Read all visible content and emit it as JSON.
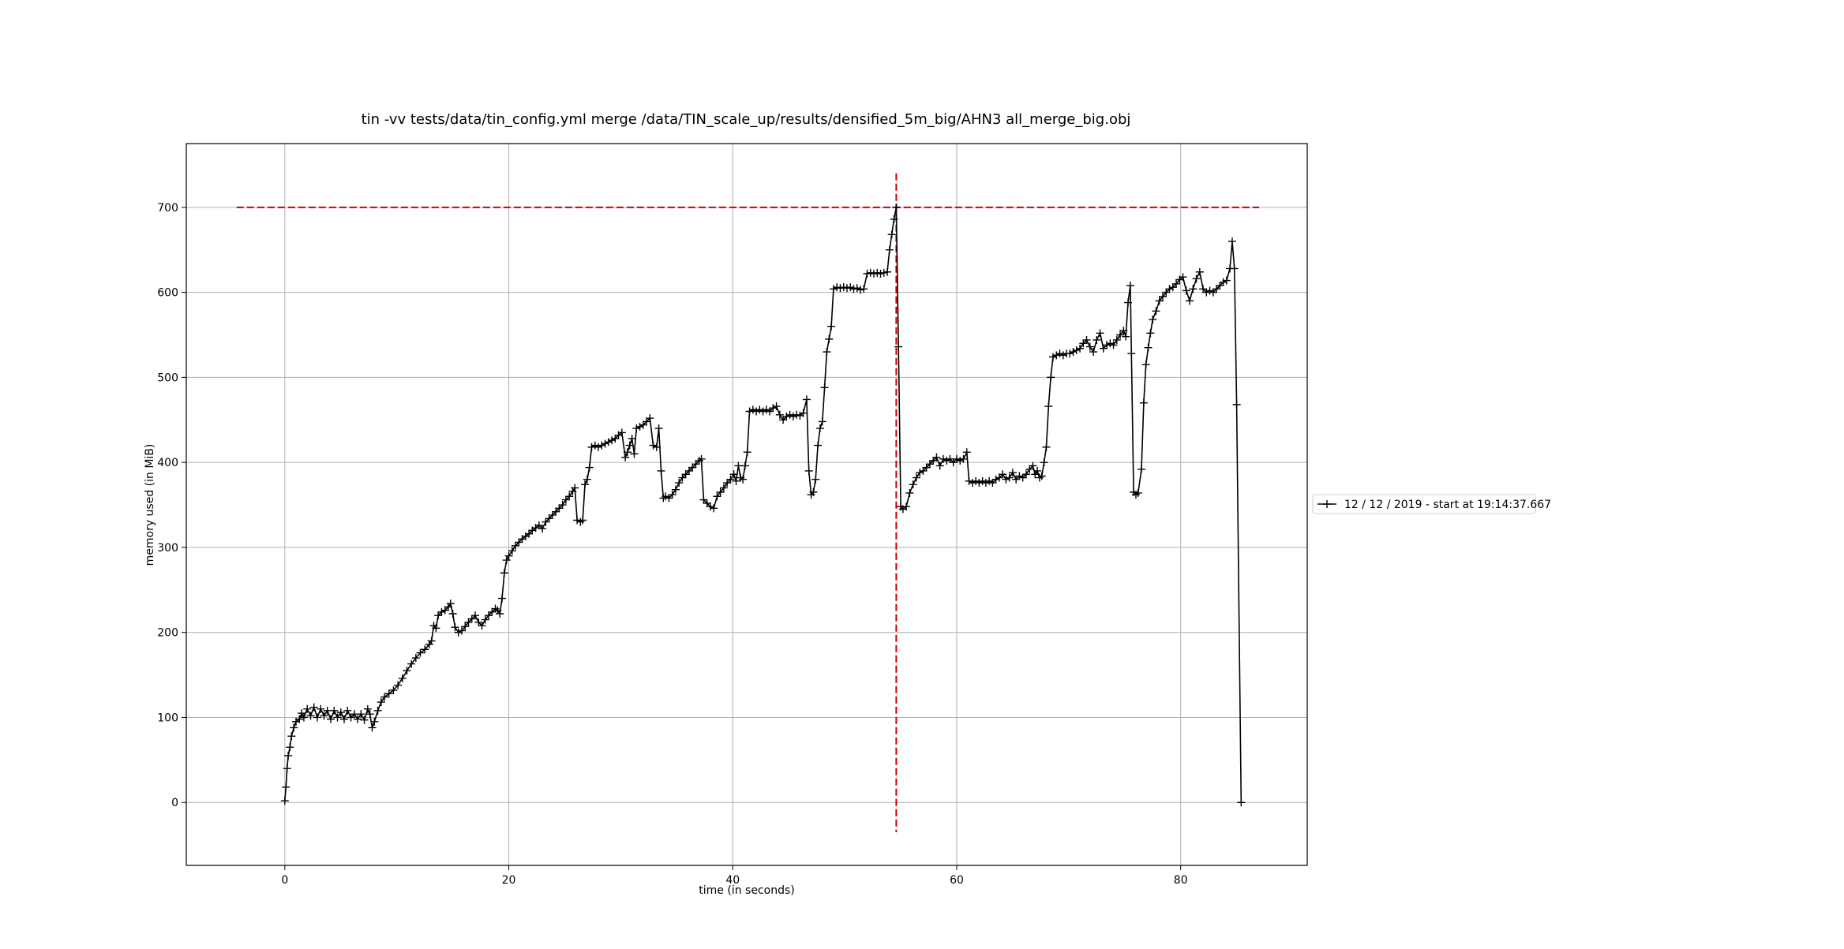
{
  "chart_data": {
    "type": "line",
    "title": "tin -vv tests/data/tin_config.yml merge /data/TIN_scale_up/results/densified_5m_big/AHN3 all_merge_big.obj",
    "xlabel": "time (in seconds)",
    "ylabel": "memory used (in MiB)",
    "xlim": [
      -8.8,
      91.3
    ],
    "ylim": [
      -74,
      775
    ],
    "xticks": [
      0,
      20,
      40,
      60,
      80
    ],
    "yticks": [
      0,
      100,
      200,
      300,
      400,
      500,
      600,
      700
    ],
    "grid": true,
    "legend_position": "right, outside",
    "series": [
      {
        "name": "12 / 12 / 2019 - start at 19:14:37.667",
        "color": "#000000",
        "marker": "+",
        "points": [
          [
            0.0,
            2
          ],
          [
            0.1,
            18
          ],
          [
            0.2,
            40
          ],
          [
            0.3,
            55
          ],
          [
            0.45,
            65
          ],
          [
            0.6,
            78
          ],
          [
            0.8,
            88
          ],
          [
            1.0,
            95
          ],
          [
            1.3,
            98
          ],
          [
            1.5,
            105
          ],
          [
            1.7,
            100
          ],
          [
            2.0,
            110
          ],
          [
            2.3,
            102
          ],
          [
            2.6,
            112
          ],
          [
            2.9,
            100
          ],
          [
            3.2,
            110
          ],
          [
            3.5,
            102
          ],
          [
            3.8,
            108
          ],
          [
            4.1,
            98
          ],
          [
            4.4,
            108
          ],
          [
            4.7,
            100
          ],
          [
            5.0,
            106
          ],
          [
            5.3,
            98
          ],
          [
            5.6,
            108
          ],
          [
            5.9,
            100
          ],
          [
            6.2,
            104
          ],
          [
            6.5,
            98
          ],
          [
            6.8,
            104
          ],
          [
            7.1,
            97
          ],
          [
            7.4,
            110
          ],
          [
            7.6,
            104
          ],
          [
            7.8,
            88
          ],
          [
            8.0,
            95
          ],
          [
            8.3,
            108
          ],
          [
            8.6,
            118
          ],
          [
            8.9,
            124
          ],
          [
            9.3,
            128
          ],
          [
            9.7,
            132
          ],
          [
            10.1,
            138
          ],
          [
            10.5,
            146
          ],
          [
            10.9,
            155
          ],
          [
            11.3,
            163
          ],
          [
            11.7,
            170
          ],
          [
            12.1,
            176
          ],
          [
            12.5,
            180
          ],
          [
            12.9,
            186
          ],
          [
            13.1,
            190
          ],
          [
            13.3,
            208
          ],
          [
            13.5,
            205
          ],
          [
            13.7,
            220
          ],
          [
            14.0,
            224
          ],
          [
            14.3,
            226
          ],
          [
            14.6,
            230
          ],
          [
            14.8,
            234
          ],
          [
            15.0,
            222
          ],
          [
            15.2,
            206
          ],
          [
            15.5,
            200
          ],
          [
            15.8,
            202
          ],
          [
            16.1,
            207
          ],
          [
            16.4,
            212
          ],
          [
            16.7,
            216
          ],
          [
            17.0,
            220
          ],
          [
            17.3,
            212
          ],
          [
            17.6,
            208
          ],
          [
            17.9,
            215
          ],
          [
            18.2,
            220
          ],
          [
            18.5,
            224
          ],
          [
            18.8,
            228
          ],
          [
            19.0,
            226
          ],
          [
            19.2,
            222
          ],
          [
            19.4,
            240
          ],
          [
            19.6,
            270
          ],
          [
            19.8,
            285
          ],
          [
            20.0,
            290
          ],
          [
            20.3,
            296
          ],
          [
            20.6,
            302
          ],
          [
            20.9,
            306
          ],
          [
            21.2,
            310
          ],
          [
            21.5,
            313
          ],
          [
            21.8,
            316
          ],
          [
            22.1,
            320
          ],
          [
            22.4,
            323
          ],
          [
            22.7,
            326
          ],
          [
            23.0,
            322
          ],
          [
            23.3,
            330
          ],
          [
            23.6,
            334
          ],
          [
            23.9,
            338
          ],
          [
            24.2,
            342
          ],
          [
            24.5,
            346
          ],
          [
            24.8,
            350
          ],
          [
            25.1,
            356
          ],
          [
            25.4,
            360
          ],
          [
            25.7,
            366
          ],
          [
            25.9,
            370
          ],
          [
            26.1,
            332
          ],
          [
            26.4,
            330
          ],
          [
            26.6,
            332
          ],
          [
            26.8,
            374
          ],
          [
            27.0,
            380
          ],
          [
            27.2,
            394
          ],
          [
            27.4,
            418
          ],
          [
            27.7,
            420
          ],
          [
            28.0,
            418
          ],
          [
            28.3,
            420
          ],
          [
            28.6,
            422
          ],
          [
            28.9,
            424
          ],
          [
            29.2,
            426
          ],
          [
            29.5,
            428
          ],
          [
            29.8,
            432
          ],
          [
            30.1,
            435
          ],
          [
            30.4,
            406
          ],
          [
            30.6,
            412
          ],
          [
            30.8,
            420
          ],
          [
            31.0,
            428
          ],
          [
            31.2,
            410
          ],
          [
            31.4,
            440
          ],
          [
            31.7,
            442
          ],
          [
            32.0,
            444
          ],
          [
            32.3,
            448
          ],
          [
            32.6,
            452
          ],
          [
            32.9,
            420
          ],
          [
            33.2,
            418
          ],
          [
            33.4,
            440
          ],
          [
            33.6,
            390
          ],
          [
            33.8,
            358
          ],
          [
            34.0,
            360
          ],
          [
            34.3,
            358
          ],
          [
            34.6,
            362
          ],
          [
            34.9,
            368
          ],
          [
            35.2,
            376
          ],
          [
            35.5,
            382
          ],
          [
            35.8,
            386
          ],
          [
            36.1,
            390
          ],
          [
            36.4,
            394
          ],
          [
            36.7,
            398
          ],
          [
            37.0,
            402
          ],
          [
            37.2,
            404
          ],
          [
            37.4,
            356
          ],
          [
            37.7,
            352
          ],
          [
            38.0,
            348
          ],
          [
            38.3,
            346
          ],
          [
            38.6,
            360
          ],
          [
            38.9,
            365
          ],
          [
            39.2,
            370
          ],
          [
            39.5,
            376
          ],
          [
            39.8,
            380
          ],
          [
            40.1,
            386
          ],
          [
            40.3,
            378
          ],
          [
            40.5,
            396
          ],
          [
            40.7,
            382
          ],
          [
            40.9,
            380
          ],
          [
            41.1,
            396
          ],
          [
            41.3,
            412
          ],
          [
            41.5,
            460
          ],
          [
            41.8,
            462
          ],
          [
            42.1,
            460
          ],
          [
            42.4,
            462
          ],
          [
            42.7,
            460
          ],
          [
            43.0,
            462
          ],
          [
            43.3,
            460
          ],
          [
            43.6,
            464
          ],
          [
            43.9,
            466
          ],
          [
            44.2,
            456
          ],
          [
            44.5,
            450
          ],
          [
            44.8,
            454
          ],
          [
            45.1,
            456
          ],
          [
            45.4,
            454
          ],
          [
            45.7,
            456
          ],
          [
            46.0,
            455
          ],
          [
            46.3,
            458
          ],
          [
            46.6,
            474
          ],
          [
            46.8,
            390
          ],
          [
            47.0,
            362
          ],
          [
            47.2,
            365
          ],
          [
            47.4,
            380
          ],
          [
            47.6,
            420
          ],
          [
            47.8,
            440
          ],
          [
            48.0,
            448
          ],
          [
            48.2,
            488
          ],
          [
            48.4,
            530
          ],
          [
            48.6,
            545
          ],
          [
            48.8,
            560
          ],
          [
            49.0,
            604
          ],
          [
            49.3,
            606
          ],
          [
            49.6,
            605
          ],
          [
            49.9,
            606
          ],
          [
            50.2,
            605
          ],
          [
            50.5,
            606
          ],
          [
            50.8,
            604
          ],
          [
            51.1,
            605
          ],
          [
            51.4,
            603
          ],
          [
            51.7,
            604
          ],
          [
            52.0,
            622
          ],
          [
            52.3,
            623
          ],
          [
            52.6,
            622
          ],
          [
            52.9,
            623
          ],
          [
            53.2,
            622
          ],
          [
            53.5,
            623
          ],
          [
            53.8,
            624
          ],
          [
            54.0,
            650
          ],
          [
            54.2,
            668
          ],
          [
            54.4,
            686
          ],
          [
            54.6,
            700
          ],
          [
            54.8,
            536
          ],
          [
            55.0,
            348
          ],
          [
            55.2,
            345
          ],
          [
            55.5,
            348
          ],
          [
            55.8,
            364
          ],
          [
            56.1,
            374
          ],
          [
            56.4,
            382
          ],
          [
            56.7,
            388
          ],
          [
            57.0,
            390
          ],
          [
            57.3,
            394
          ],
          [
            57.6,
            398
          ],
          [
            57.9,
            402
          ],
          [
            58.2,
            406
          ],
          [
            58.5,
            396
          ],
          [
            58.8,
            404
          ],
          [
            59.1,
            402
          ],
          [
            59.4,
            404
          ],
          [
            59.7,
            400
          ],
          [
            60.0,
            404
          ],
          [
            60.3,
            402
          ],
          [
            60.6,
            404
          ],
          [
            60.9,
            412
          ],
          [
            61.1,
            378
          ],
          [
            61.4,
            376
          ],
          [
            61.7,
            378
          ],
          [
            62.0,
            376
          ],
          [
            62.3,
            378
          ],
          [
            62.6,
            376
          ],
          [
            62.9,
            378
          ],
          [
            63.2,
            376
          ],
          [
            63.5,
            380
          ],
          [
            63.8,
            382
          ],
          [
            64.1,
            386
          ],
          [
            64.4,
            380
          ],
          [
            64.7,
            382
          ],
          [
            65.0,
            388
          ],
          [
            65.3,
            380
          ],
          [
            65.6,
            384
          ],
          [
            65.9,
            382
          ],
          [
            66.2,
            386
          ],
          [
            66.5,
            392
          ],
          [
            66.8,
            396
          ],
          [
            67.0,
            386
          ],
          [
            67.2,
            390
          ],
          [
            67.4,
            382
          ],
          [
            67.6,
            384
          ],
          [
            67.8,
            400
          ],
          [
            68.0,
            418
          ],
          [
            68.2,
            466
          ],
          [
            68.4,
            500
          ],
          [
            68.6,
            524
          ],
          [
            68.9,
            526
          ],
          [
            69.2,
            528
          ],
          [
            69.5,
            526
          ],
          [
            69.8,
            528
          ],
          [
            70.1,
            528
          ],
          [
            70.4,
            530
          ],
          [
            70.7,
            532
          ],
          [
            71.0,
            534
          ],
          [
            71.3,
            540
          ],
          [
            71.6,
            544
          ],
          [
            71.9,
            536
          ],
          [
            72.2,
            530
          ],
          [
            72.5,
            544
          ],
          [
            72.8,
            552
          ],
          [
            73.1,
            534
          ],
          [
            73.4,
            538
          ],
          [
            73.7,
            540
          ],
          [
            74.0,
            538
          ],
          [
            74.3,
            544
          ],
          [
            74.6,
            550
          ],
          [
            74.9,
            555
          ],
          [
            75.1,
            548
          ],
          [
            75.3,
            588
          ],
          [
            75.5,
            608
          ],
          [
            75.6,
            528
          ],
          [
            75.8,
            365
          ],
          [
            76.0,
            362
          ],
          [
            76.2,
            364
          ],
          [
            76.5,
            392
          ],
          [
            76.7,
            470
          ],
          [
            76.9,
            515
          ],
          [
            77.1,
            535
          ],
          [
            77.3,
            552
          ],
          [
            77.5,
            568
          ],
          [
            77.8,
            578
          ],
          [
            78.1,
            590
          ],
          [
            78.4,
            595
          ],
          [
            78.7,
            600
          ],
          [
            79.0,
            604
          ],
          [
            79.3,
            606
          ],
          [
            79.6,
            610
          ],
          [
            79.9,
            615
          ],
          [
            80.2,
            618
          ],
          [
            80.5,
            602
          ],
          [
            80.8,
            590
          ],
          [
            81.1,
            604
          ],
          [
            81.4,
            616
          ],
          [
            81.7,
            624
          ],
          [
            82.0,
            604
          ],
          [
            82.3,
            600
          ],
          [
            82.6,
            602
          ],
          [
            82.9,
            600
          ],
          [
            83.2,
            604
          ],
          [
            83.5,
            608
          ],
          [
            83.8,
            612
          ],
          [
            84.1,
            614
          ],
          [
            84.4,
            628
          ],
          [
            84.6,
            660
          ],
          [
            84.8,
            628
          ],
          [
            85.0,
            468
          ],
          [
            85.4,
            0
          ]
        ]
      }
    ],
    "reference_lines": [
      {
        "orientation": "horizontal",
        "value": 700,
        "color": "#cc0000",
        "style": "dashed"
      },
      {
        "orientation": "vertical",
        "value": 54.6,
        "color": "#cc0000",
        "style": "dashed"
      }
    ]
  }
}
